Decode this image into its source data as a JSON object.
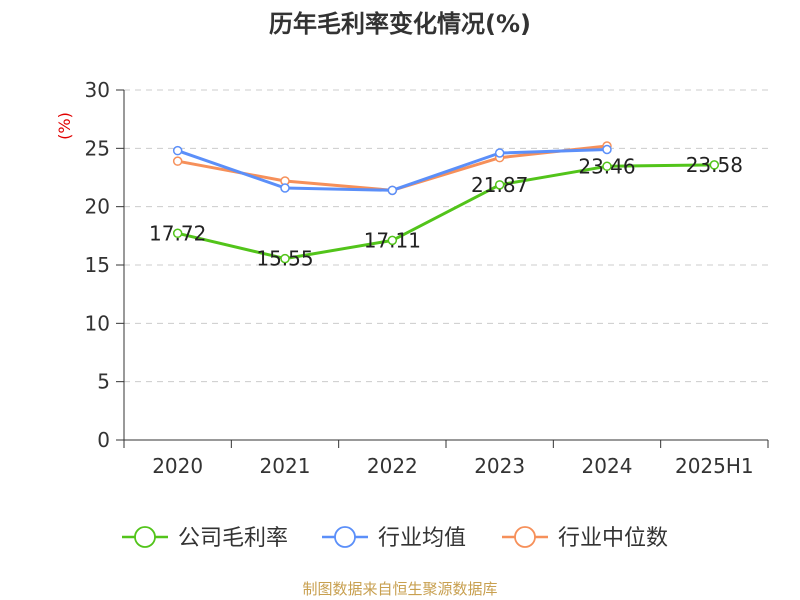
{
  "chart_data": {
    "type": "line",
    "title": "历年毛利率变化情况(%)",
    "ylabel": "(%)",
    "xlabel": "",
    "categories": [
      "2020",
      "2021",
      "2022",
      "2023",
      "2024",
      "2025H1"
    ],
    "ylim": [
      0,
      30
    ],
    "yticks": [
      0,
      5,
      10,
      15,
      20,
      25,
      30
    ],
    "grid": true,
    "legend_position": "bottom",
    "series": [
      {
        "name": "公司毛利率",
        "color": "#52c41a",
        "values": [
          17.72,
          15.55,
          17.11,
          21.87,
          23.46,
          23.58
        ],
        "labels": [
          "17.72",
          "15.55",
          "17.11",
          "21.87",
          "23.46",
          "23.58"
        ]
      },
      {
        "name": "行业均值",
        "color": "#5b8ff9",
        "values": [
          24.8,
          21.6,
          21.4,
          24.6,
          24.9,
          null
        ]
      },
      {
        "name": "行业中位数",
        "color": "#f6905a",
        "values": [
          23.9,
          22.2,
          21.4,
          24.2,
          25.2,
          null
        ]
      }
    ],
    "source": "制图数据来自恒生聚源数据库"
  }
}
